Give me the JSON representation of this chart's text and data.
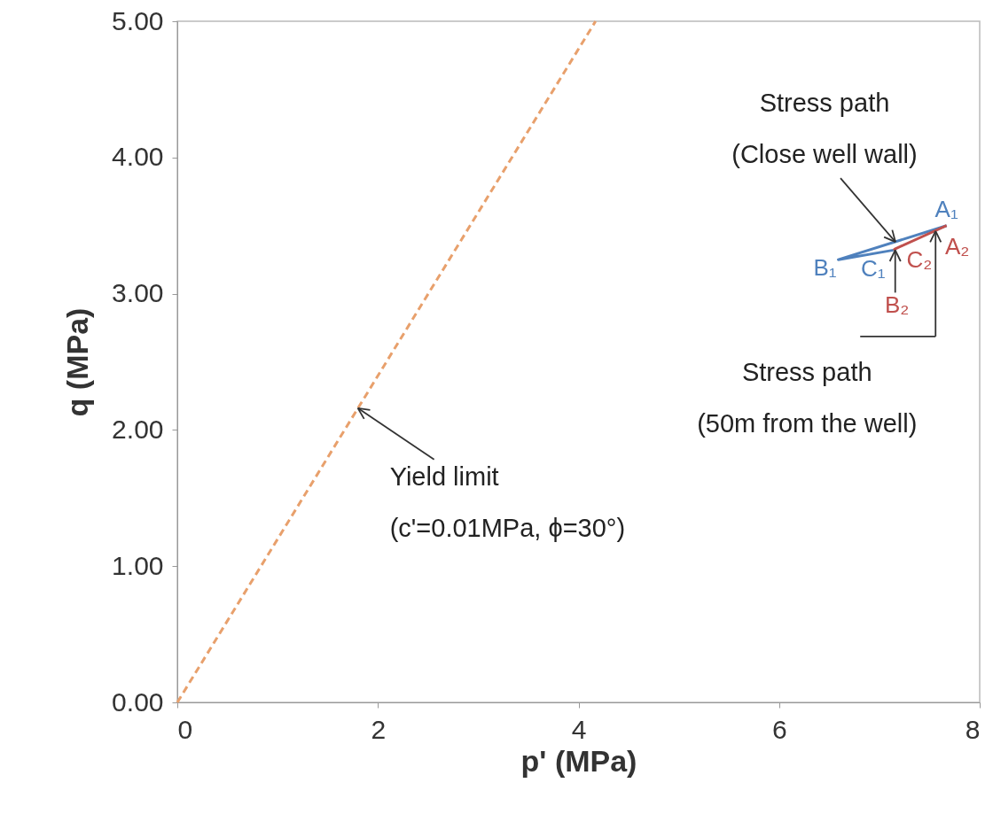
{
  "chart_data": {
    "type": "line",
    "xlabel": "p' (MPa)",
    "ylabel": "q (MPa)",
    "xlim": [
      0,
      8
    ],
    "xticks": [
      0,
      2,
      4,
      6,
      8
    ],
    "ylim": [
      0,
      5
    ],
    "yticks": [
      {
        "value": 0,
        "label": "0.00"
      },
      {
        "value": 1,
        "label": "1.00"
      },
      {
        "value": 2,
        "label": "2.00"
      },
      {
        "value": 3,
        "label": "3.00"
      },
      {
        "value": 4,
        "label": "4.00"
      },
      {
        "value": 5,
        "label": "5.00"
      }
    ],
    "grid": false,
    "marker": "none",
    "series": [
      {
        "color": "#e8a06c",
        "line_style": "dashed",
        "x": [
          0,
          4.17
        ],
        "values": [
          0,
          5.0
        ]
      },
      {
        "color": "#4f81bd",
        "line_style": "solid",
        "x": [
          7.67,
          6.59,
          7.14
        ],
        "values": [
          3.5,
          3.25,
          3.32
        ],
        "value_labels": [
          "A₁",
          "B₁",
          "C₁"
        ]
      },
      {
        "color": "#c0504d",
        "line_style": "solid",
        "x": [
          7.14,
          7.16,
          7.67
        ],
        "values": [
          3.32,
          3.33,
          3.5
        ],
        "value_labels": [
          "B₂",
          "C₂",
          "A₂"
        ]
      }
    ],
    "annotations": [
      {
        "text": "Stress path\n(Close well wall)",
        "x": 7.16,
        "y": 3.38
      },
      {
        "text": "Stress path\n(50m from the well)",
        "x": 7.56,
        "y": 3.46
      },
      {
        "text": "Yield limit\n (c'=0.01MPa, ϕ=30°)",
        "x": 1.8,
        "y": 2.16
      }
    ]
  }
}
